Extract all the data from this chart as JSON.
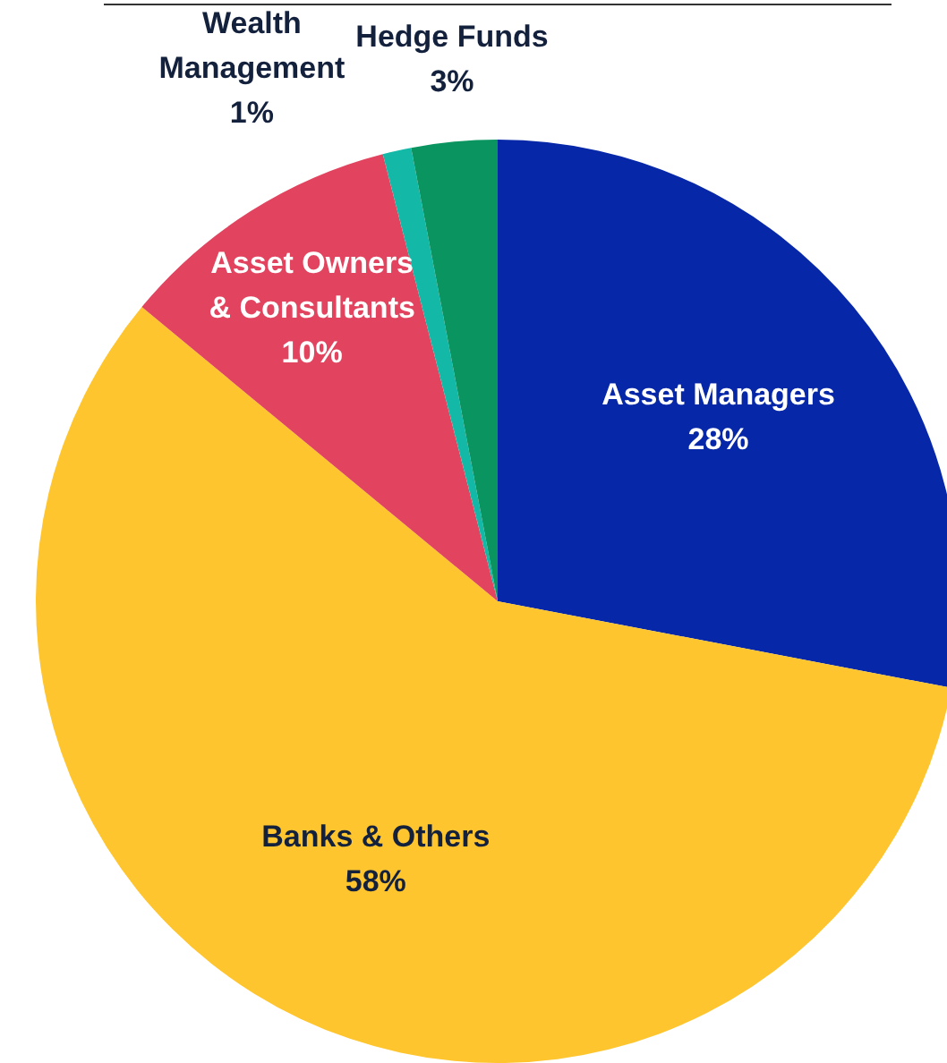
{
  "chart_data": {
    "type": "pie",
    "categories": [
      "Asset Managers",
      "Banks & Others",
      "Asset Owners & Consultants",
      "Wealth Management",
      "Hedge Funds"
    ],
    "values": [
      28,
      58,
      10,
      1,
      3
    ],
    "value_labels": [
      "28%",
      "58%",
      "10%",
      "1%",
      "3%"
    ],
    "colors": [
      "#0527a8",
      "#fec52e",
      "#e2435f",
      "#14b8a6",
      "#0a9460"
    ],
    "legend": false
  }
}
